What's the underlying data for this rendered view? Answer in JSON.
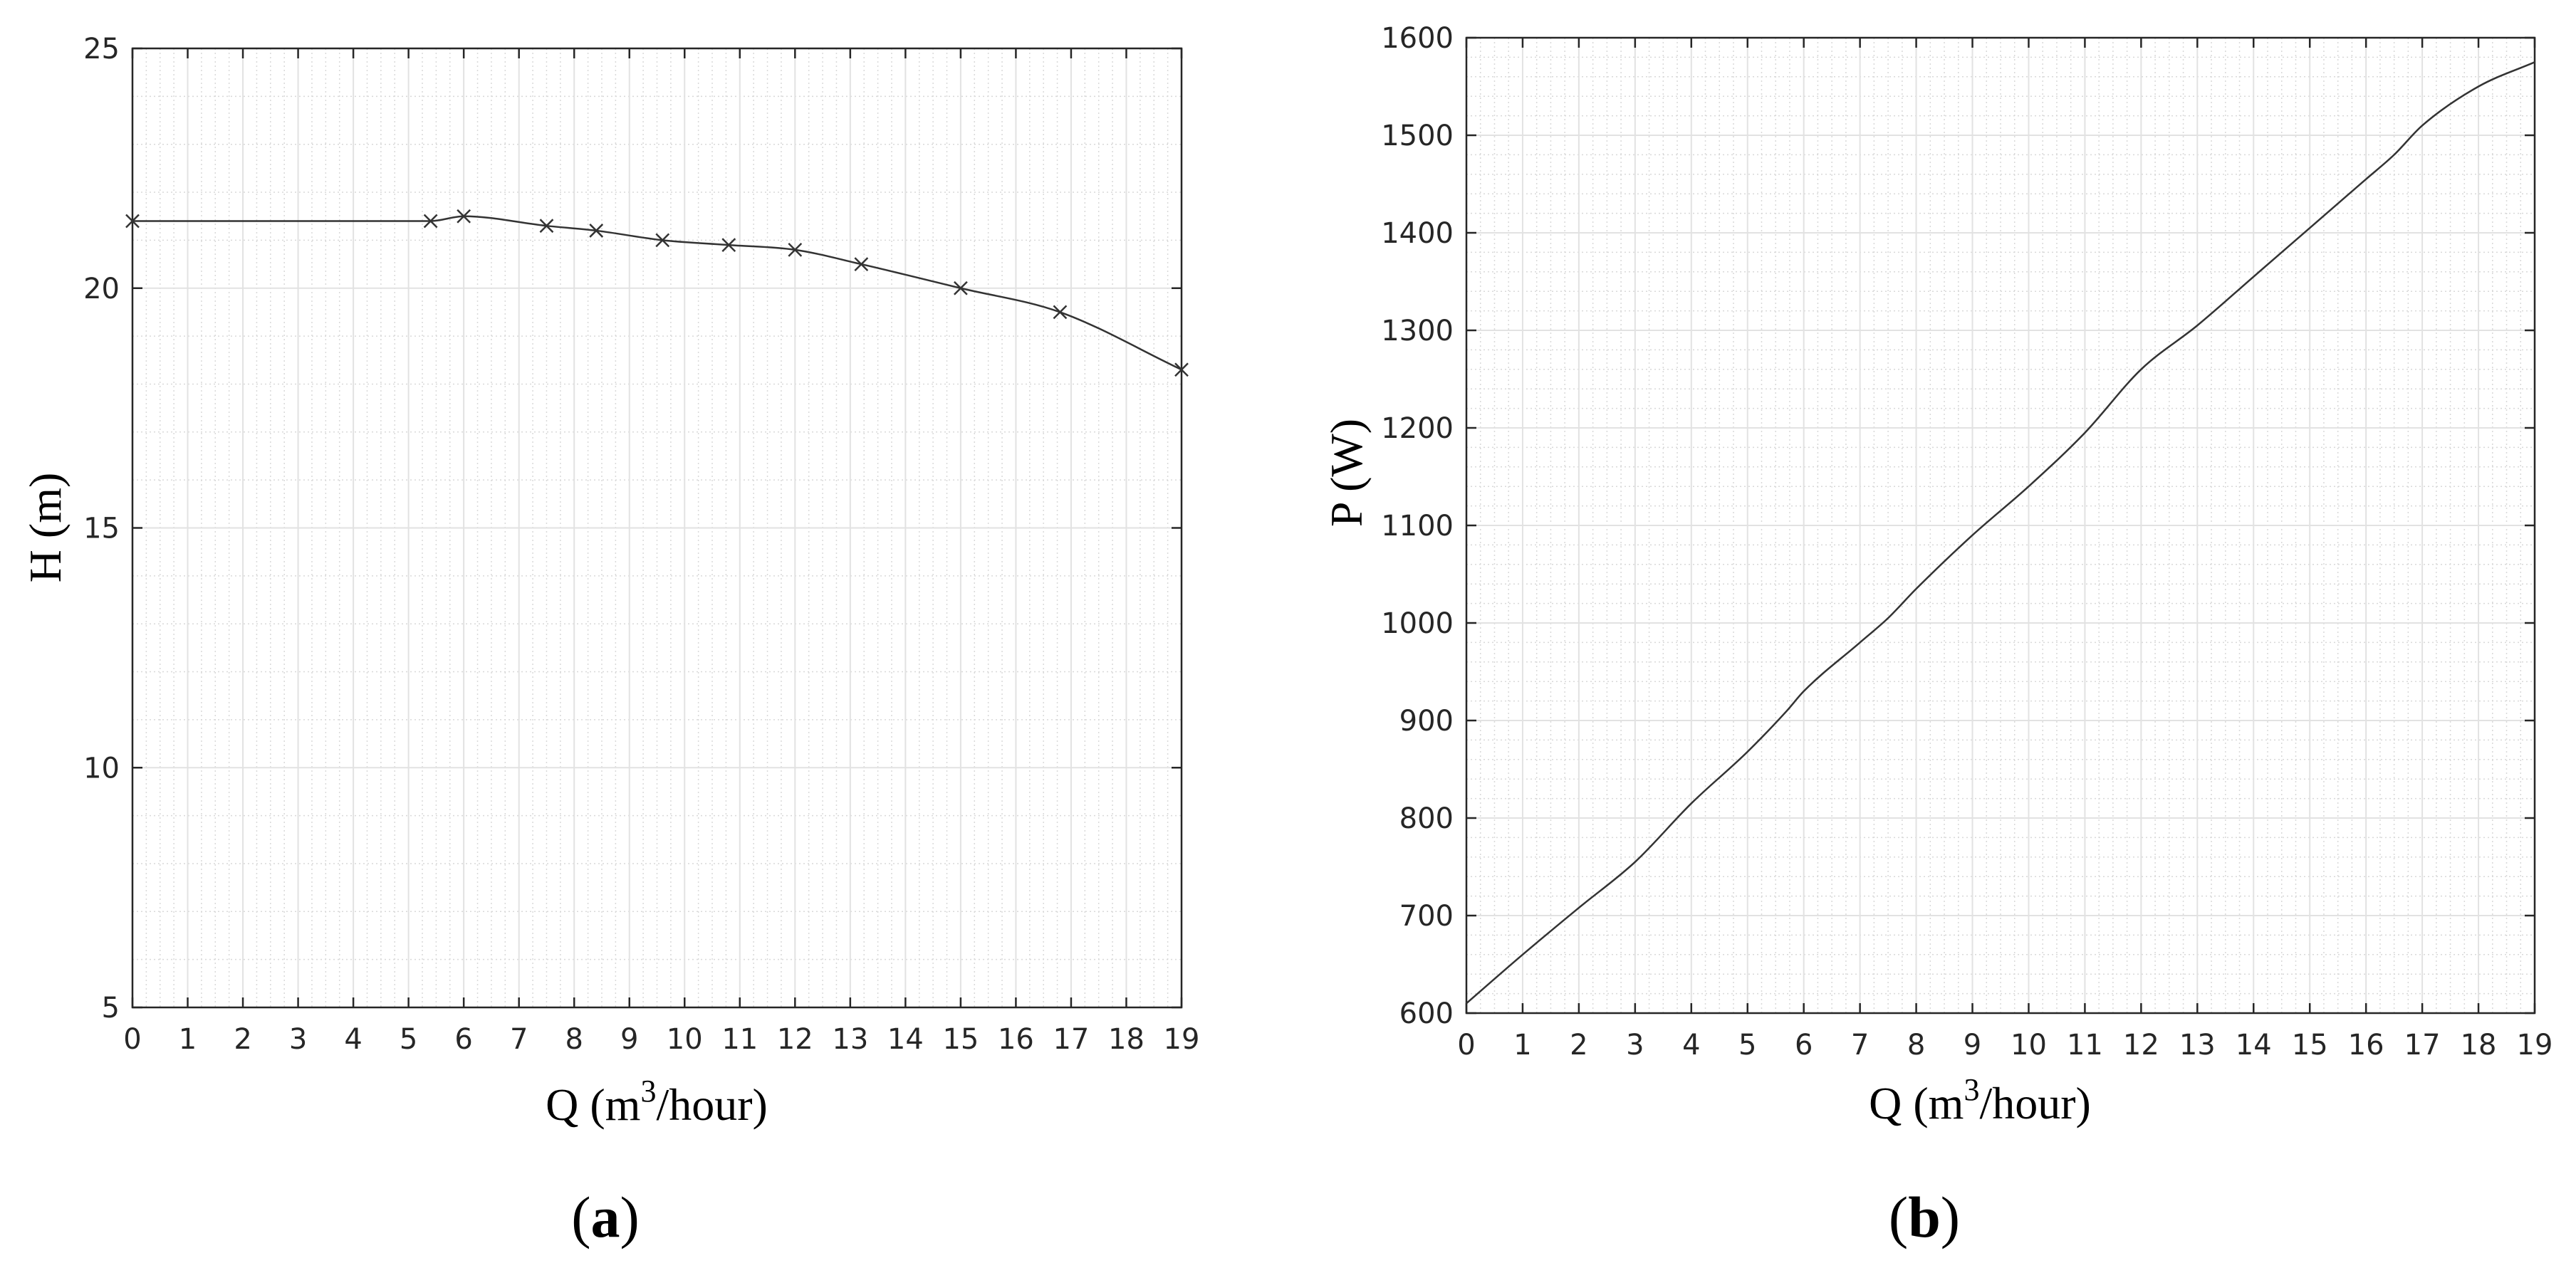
{
  "chart_data": [
    {
      "type": "line",
      "panel": "(a)",
      "panel_letter": "a",
      "xlabel": {
        "main": "Q (m",
        "sup": "3",
        "tail": "/hour)"
      },
      "ylabel": "H (m)",
      "xlim": [
        0,
        19
      ],
      "ylim": [
        5,
        25
      ],
      "xticks": [
        0,
        1,
        2,
        3,
        4,
        5,
        6,
        7,
        8,
        9,
        10,
        11,
        12,
        13,
        14,
        15,
        16,
        17,
        18,
        19
      ],
      "yticks": [
        5,
        10,
        15,
        20,
        25
      ],
      "grid": true,
      "marker": "x",
      "series": [
        {
          "name": "H",
          "x": [
            0,
            5.4,
            6,
            7.5,
            8.4,
            9.6,
            10.8,
            12,
            13.2,
            15,
            16.8,
            19
          ],
          "y": [
            21.4,
            21.4,
            21.5,
            21.3,
            21.2,
            21.0,
            20.9,
            20.8,
            20.5,
            20.0,
            19.5,
            18.3
          ]
        }
      ]
    },
    {
      "type": "line",
      "panel": "(b)",
      "panel_letter": "b",
      "xlabel": {
        "main": "Q (m",
        "sup": "3",
        "tail": "/hour)"
      },
      "ylabel": "P (W)",
      "xlim": [
        0,
        19
      ],
      "ylim": [
        600,
        1600
      ],
      "xticks": [
        0,
        1,
        2,
        3,
        4,
        5,
        6,
        7,
        8,
        9,
        10,
        11,
        12,
        13,
        14,
        15,
        16,
        17,
        18,
        19
      ],
      "yticks": [
        600,
        700,
        800,
        900,
        1000,
        1100,
        1200,
        1300,
        1400,
        1500,
        1600
      ],
      "grid": true,
      "marker": "none",
      "series": [
        {
          "name": "P",
          "x": [
            0,
            1,
            2,
            3,
            4,
            5,
            5.7,
            6,
            7,
            7.5,
            8,
            9,
            10,
            11,
            12,
            13,
            14,
            15,
            16,
            16.5,
            17,
            18,
            19
          ],
          "y": [
            610,
            660,
            708,
            755,
            815,
            868,
            910,
            930,
            980,
            1005,
            1035,
            1090,
            1140,
            1195,
            1260,
            1305,
            1355,
            1405,
            1455,
            1480,
            1510,
            1550,
            1575
          ]
        }
      ]
    }
  ]
}
